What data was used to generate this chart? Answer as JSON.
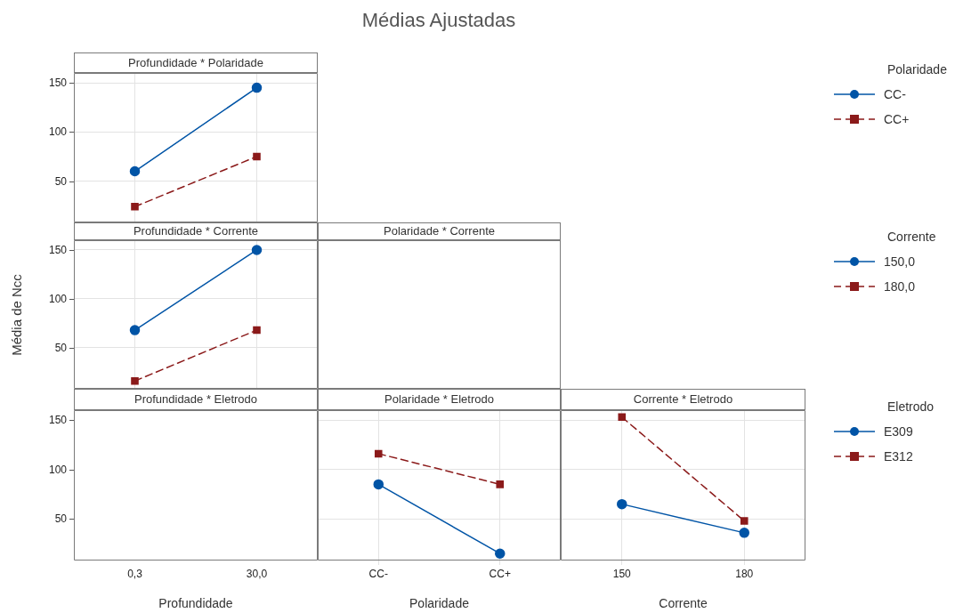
{
  "chart_data": [
    {
      "type": "other",
      "title": "Médias Ajustadas"
    },
    {
      "type": "line",
      "title": "Profundidade * Polaridade",
      "categories": [
        "0,3",
        "30,0"
      ],
      "ylim": [
        8,
        160
      ],
      "yticks": [
        50,
        100,
        150
      ],
      "grid": true,
      "tick_labels": "y",
      "legend": "right",
      "legend_title": "Polaridade",
      "series": [
        {
          "name": "CC-",
          "color": "#0054a6",
          "values": [
            60,
            145
          ],
          "marker": "circle",
          "line_style": "solid"
        },
        {
          "name": "CC+",
          "color": "#8b1a1a",
          "values": [
            24,
            75
          ],
          "marker": "square",
          "line_style": "dashed"
        }
      ]
    },
    {
      "type": "line",
      "title": "Profundidade * Corrente",
      "ylabel": "Média de Ncc",
      "categories": [
        "0,3",
        "30,0"
      ],
      "ylim": [
        8,
        160
      ],
      "yticks": [
        50,
        100,
        150
      ],
      "grid": true,
      "tick_labels": "y",
      "legend": "right",
      "legend_title": "Corrente",
      "series": [
        {
          "name": "150,0",
          "color": "#0054a6",
          "values": [
            68,
            150
          ],
          "marker": "circle",
          "line_style": "solid"
        },
        {
          "name": "180,0",
          "color": "#8b1a1a",
          "values": [
            16,
            68
          ],
          "marker": "square",
          "line_style": "dashed"
        }
      ]
    },
    {
      "type": "other",
      "title": "Polaridade * Corrente"
    },
    {
      "type": "line",
      "title": "Profundidade * Eletrodo",
      "xlabel": "Profundidade",
      "categories": [
        "0,3",
        "30,0"
      ],
      "ylim": [
        8,
        160
      ],
      "yticks": [
        50,
        100,
        150
      ]
    },
    {
      "type": "line",
      "title": "Polaridade * Eletrodo",
      "xlabel": "Polaridade",
      "categories": [
        "CC-",
        "CC+"
      ],
      "ylim": [
        8,
        160
      ],
      "yticks": [
        50,
        100,
        150
      ],
      "grid": true,
      "tick_labels": "x",
      "series": [
        {
          "color": "#0054a6",
          "values": [
            85,
            15
          ],
          "marker": "circle",
          "line_style": "solid"
        },
        {
          "color": "#8b1a1a",
          "values": [
            116,
            85
          ],
          "marker": "square",
          "line_style": "dashed"
        }
      ]
    },
    {
      "type": "line",
      "title": "Corrente * Eletrodo",
      "xlabel": "Corrente",
      "categories": [
        "150",
        "180"
      ],
      "ylim": [
        8,
        160
      ],
      "yticks": [
        50,
        100,
        150
      ],
      "grid": true,
      "tick_labels": "x",
      "legend": "right",
      "legend_title": "Eletrodo",
      "series": [
        {
          "name": "E309",
          "color": "#0054a6",
          "values": [
            65,
            36
          ],
          "marker": "circle",
          "line_style": "solid"
        },
        {
          "name": "E312",
          "color": "#8b1a1a",
          "values": [
            153,
            48
          ],
          "marker": "square",
          "line_style": "dashed"
        }
      ]
    }
  ]
}
